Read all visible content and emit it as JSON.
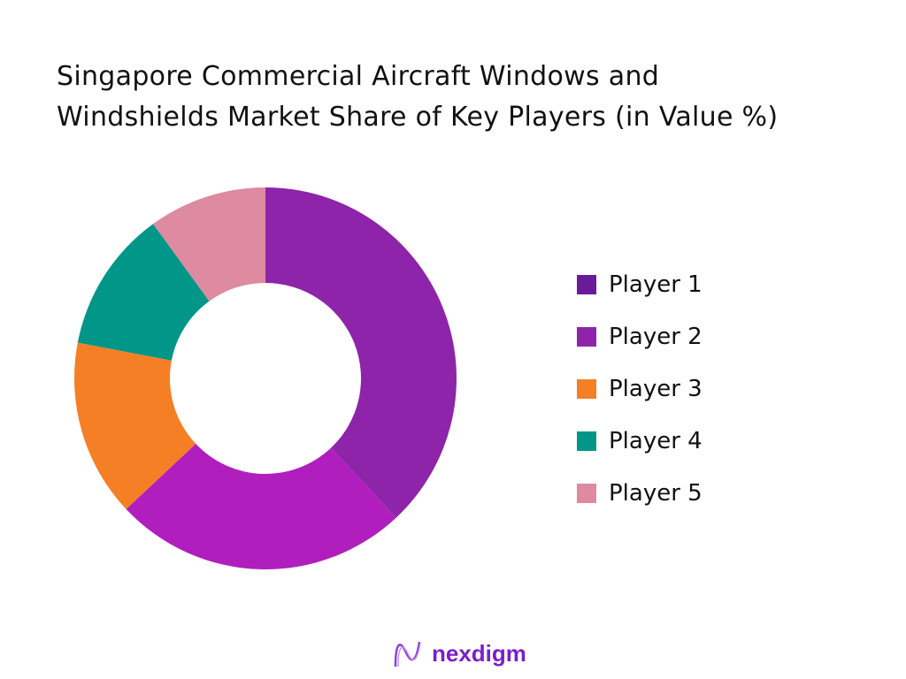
{
  "chart_data": {
    "type": "pie",
    "donut": true,
    "title": "Singapore Commercial Aircraft Windows and Windshields Market Share of Key Players (in Value %)",
    "title_lines": [
      "Singapore Commercial Aircraft Windows and",
      "Windshields Market Share of Key Players (in Value %)"
    ],
    "categories": [
      "Player 1",
      "Player 2",
      "Player 3",
      "Player 4",
      "Player 5"
    ],
    "values": [
      38,
      25,
      15,
      12,
      10
    ],
    "unit": "%",
    "slice_colors": [
      "#8e24aa",
      "#b01fbd",
      "#f57f25",
      "#009688",
      "#de8aa0"
    ],
    "legend_colors": [
      "#6a1b9a",
      "#8e24aa",
      "#f57f25",
      "#009688",
      "#de8aa0"
    ],
    "legend_position": "right"
  },
  "brand": {
    "name": "nexdigm",
    "color": "#7b1fc8"
  }
}
